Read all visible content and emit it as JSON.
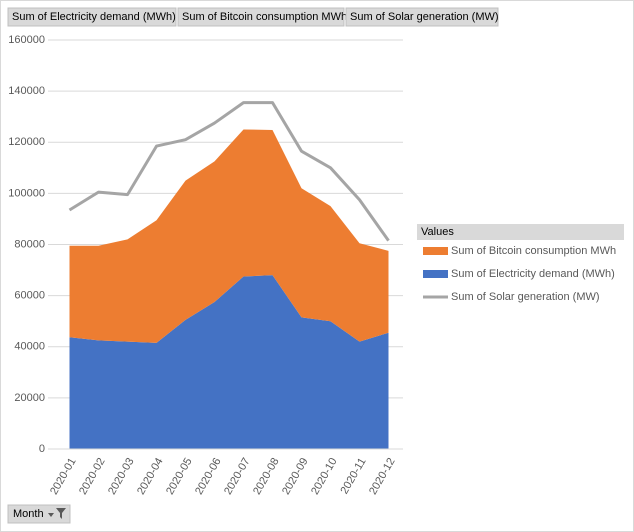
{
  "chart_data": {
    "type": "area",
    "field_buttons": [
      "Sum of Electricity demand (MWh)",
      "Sum of Bitcoin consumption MWh",
      "Sum of Solar generation (MW)"
    ],
    "categories": [
      "2020-01",
      "2020-02",
      "2020-03",
      "2020-04",
      "2020-05",
      "2020-06",
      "2020-07",
      "2020-08",
      "2020-09",
      "2020-10",
      "2020-11",
      "2020-12"
    ],
    "series": [
      {
        "name": "Sum of Electricity demand (MWh)",
        "type": "area",
        "color": "#4472c4",
        "values": [
          43700,
          42500,
          42000,
          41500,
          50500,
          57500,
          67500,
          68000,
          51500,
          50000,
          42000,
          45500
        ]
      },
      {
        "name": "Sum of Bitcoin consumption MWh",
        "type": "area",
        "color": "#ed7d31",
        "values": [
          35800,
          37000,
          40000,
          48000,
          54500,
          55000,
          57500,
          56800,
          50500,
          45000,
          38500,
          32000
        ]
      },
      {
        "name": "Sum of Solar generation (MW)",
        "type": "line",
        "color": "#a5a5a5",
        "values": [
          93500,
          100500,
          99500,
          118500,
          121000,
          127500,
          135500,
          135500,
          116500,
          110000,
          97500,
          81500
        ]
      }
    ],
    "legend_title": "Values",
    "legend_order": [
      1,
      0,
      2
    ],
    "filter_button": "Month",
    "ylim": [
      0,
      160000
    ],
    "yticks": [
      0,
      20000,
      40000,
      60000,
      80000,
      100000,
      120000,
      140000,
      160000
    ],
    "grid": true
  }
}
